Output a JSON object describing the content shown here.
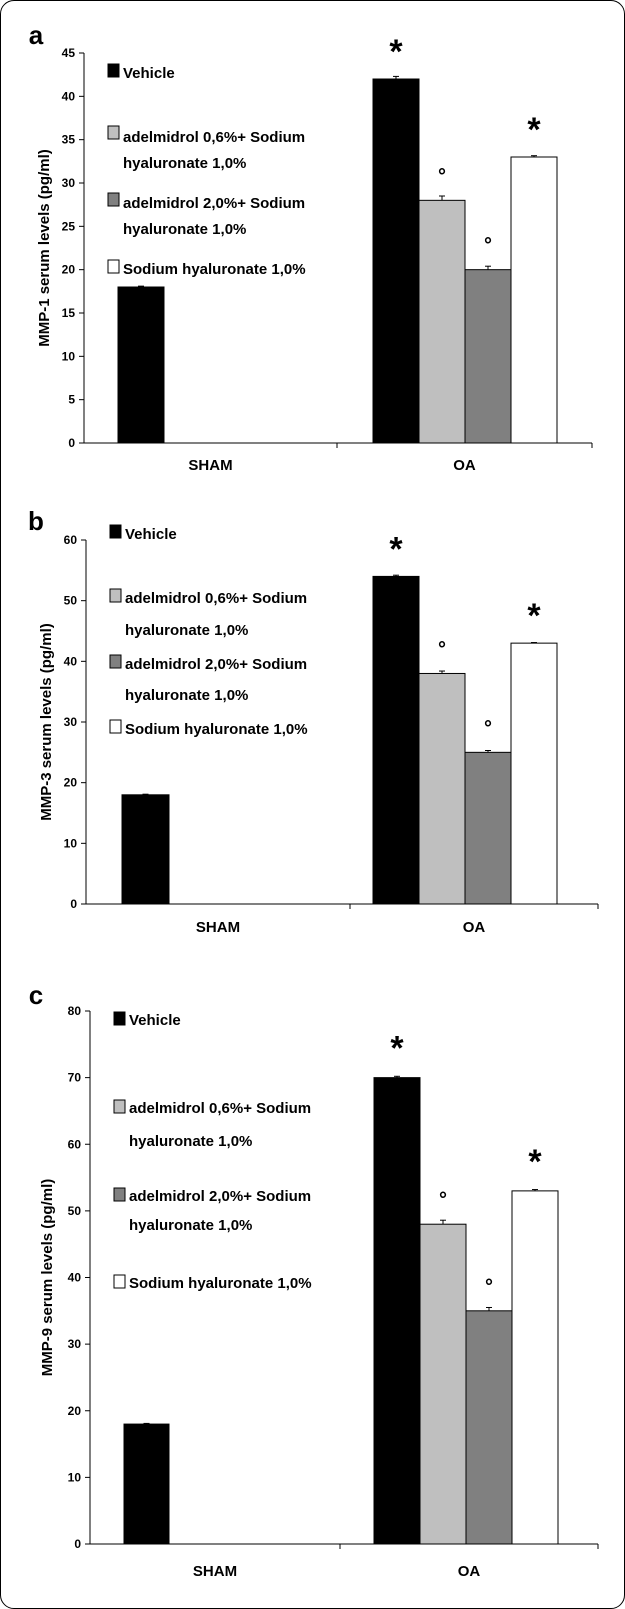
{
  "chart_data": [
    {
      "panel": "a",
      "type": "bar",
      "ylabel": "MMP-1 serum levels (pg/ml)",
      "ylim": [
        0,
        45
      ],
      "yticks": [
        0,
        5,
        10,
        15,
        20,
        25,
        30,
        35,
        40,
        45
      ],
      "categories": [
        "SHAM",
        "OA"
      ],
      "series": [
        {
          "name": "Vehicle",
          "color": "#000000",
          "values": [
            18,
            42
          ],
          "errors": [
            0.1,
            0.3
          ],
          "marks": [
            "",
            "*"
          ]
        },
        {
          "name": "adelmidrol 0,6%+ Sodium hyaluronate 1,0%",
          "color": "#bfbfbf",
          "values": [
            null,
            28
          ],
          "errors": [
            null,
            0.5
          ],
          "marks": [
            "",
            "°"
          ]
        },
        {
          "name": "adelmidrol 2,0%+ Sodium hyaluronate 1,0%",
          "color": "#808080",
          "values": [
            null,
            20
          ],
          "errors": [
            null,
            0.4
          ],
          "marks": [
            "",
            "°"
          ]
        },
        {
          "name": "Sodium hyaluronate 1,0%",
          "color": "#ffffff",
          "values": [
            null,
            33
          ],
          "errors": [
            null,
            0.15
          ],
          "marks": [
            "",
            "*"
          ]
        }
      ]
    },
    {
      "panel": "b",
      "type": "bar",
      "ylabel": "MMP-3 serum levels (pg/ml)",
      "ylim": [
        0,
        60
      ],
      "yticks": [
        0,
        10,
        20,
        30,
        40,
        50,
        60
      ],
      "categories": [
        "SHAM",
        "OA"
      ],
      "series": [
        {
          "name": "Vehicle",
          "color": "#000000",
          "values": [
            18,
            54
          ],
          "errors": [
            0.1,
            0.2
          ],
          "marks": [
            "",
            "*"
          ]
        },
        {
          "name": "adelmidrol 0,6%+ Sodium hyaluronate 1,0%",
          "color": "#bfbfbf",
          "values": [
            null,
            38
          ],
          "errors": [
            null,
            0.4
          ],
          "marks": [
            "",
            "°"
          ]
        },
        {
          "name": "adelmidrol 2,0%+ Sodium hyaluronate 1,0%",
          "color": "#808080",
          "values": [
            null,
            25
          ],
          "errors": [
            null,
            0.3
          ],
          "marks": [
            "",
            "°"
          ]
        },
        {
          "name": "Sodium hyaluronate 1,0%",
          "color": "#ffffff",
          "values": [
            null,
            43
          ],
          "errors": [
            null,
            0.1
          ],
          "marks": [
            "",
            "*"
          ]
        }
      ]
    },
    {
      "panel": "c",
      "type": "bar",
      "ylabel": "MMP-9 serum levels (pg/ml)",
      "ylim": [
        0,
        80
      ],
      "yticks": [
        0,
        10,
        20,
        30,
        40,
        50,
        60,
        70,
        80
      ],
      "categories": [
        "SHAM",
        "OA"
      ],
      "series": [
        {
          "name": "Vehicle",
          "color": "#000000",
          "values": [
            18,
            70
          ],
          "errors": [
            0.1,
            0.2
          ],
          "marks": [
            "",
            "*"
          ]
        },
        {
          "name": "adelmidrol 0,6%+ Sodium hyaluronate 1,0%",
          "color": "#bfbfbf",
          "values": [
            null,
            48
          ],
          "errors": [
            null,
            0.6
          ],
          "marks": [
            "",
            "°"
          ]
        },
        {
          "name": "adelmidrol 2,0%+ Sodium hyaluronate 1,0%",
          "color": "#808080",
          "values": [
            null,
            35
          ],
          "errors": [
            null,
            0.5
          ],
          "marks": [
            "",
            "°"
          ]
        },
        {
          "name": "Sodium hyaluronate 1,0%",
          "color": "#ffffff",
          "values": [
            null,
            53
          ],
          "errors": [
            null,
            0.2
          ],
          "marks": [
            "",
            "*"
          ]
        }
      ]
    }
  ]
}
